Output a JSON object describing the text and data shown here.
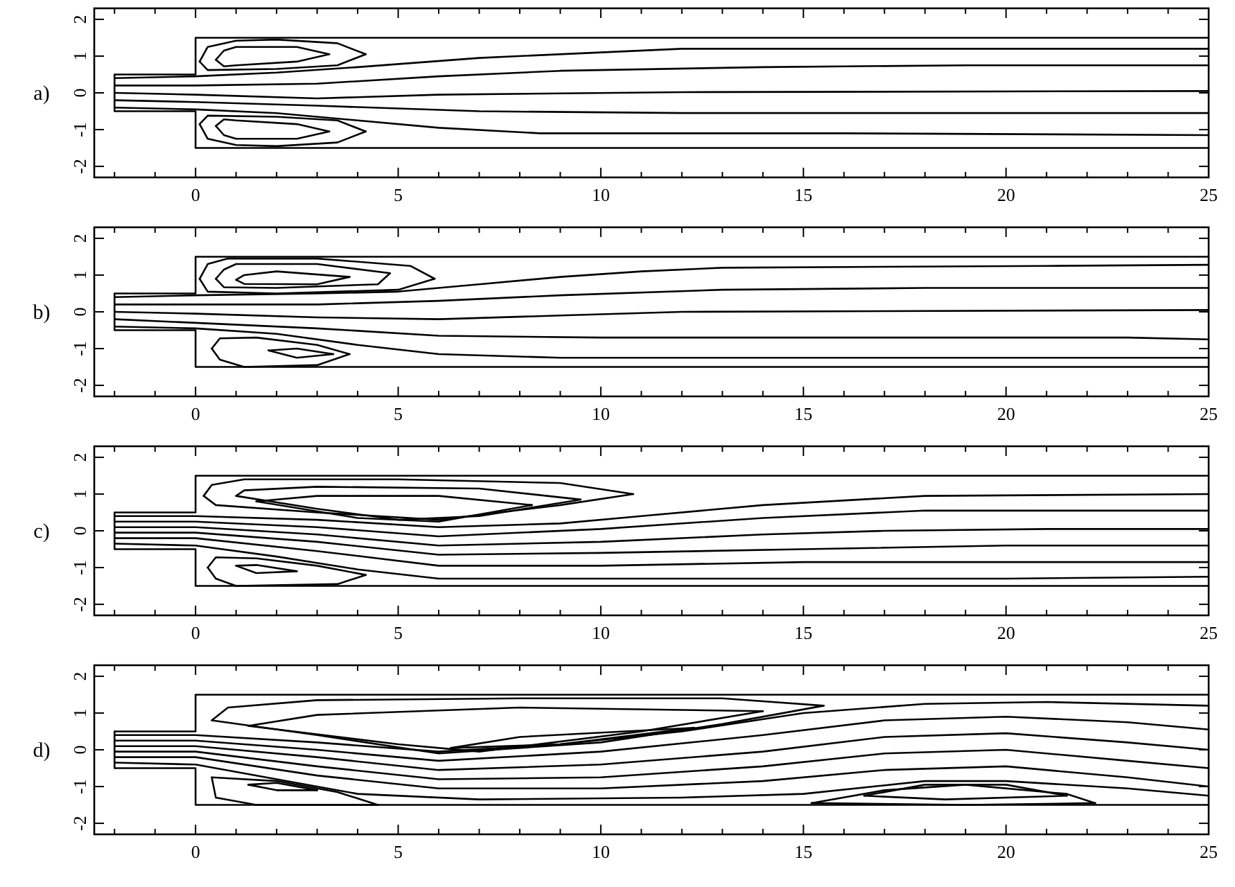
{
  "chart_data": [
    {
      "type": "line",
      "title": "a)",
      "xlim": [
        -2.5,
        25
      ],
      "ylim": [
        -2.3,
        2.3
      ],
      "yticks": [
        -2,
        -1,
        0,
        1,
        2
      ],
      "grid": false,
      "xticks": [
        {
          "value": -2,
          "label": null
        },
        {
          "value": -1,
          "label": null
        },
        0,
        {
          "value": 1,
          "label": null
        },
        {
          "value": 2,
          "label": null
        },
        {
          "value": 3,
          "label": null
        },
        {
          "value": 4,
          "label": null
        },
        5,
        {
          "value": 6,
          "label": null
        },
        {
          "value": 7,
          "label": null
        },
        {
          "value": 8,
          "label": null
        },
        {
          "value": 9,
          "label": null
        },
        10,
        {
          "value": 11,
          "label": null
        },
        {
          "value": 12,
          "label": null
        },
        {
          "value": 13,
          "label": null
        },
        {
          "value": 14,
          "label": null
        },
        15,
        {
          "value": 16,
          "label": null
        },
        {
          "value": 17,
          "label": null
        },
        {
          "value": 18,
          "label": null
        },
        {
          "value": 19,
          "label": null
        },
        20,
        {
          "value": 21,
          "label": null
        },
        {
          "value": 22,
          "label": null
        },
        {
          "value": 23,
          "label": null
        },
        {
          "value": 24,
          "label": null
        },
        25
      ],
      "series": [
        {
          "color": "#000000",
          "x": [
            25,
            0,
            0,
            -2,
            -2,
            0,
            0,
            25
          ],
          "values": [
            1.5,
            1.5,
            0.5,
            0.5,
            -0.5,
            -0.5,
            -1.5,
            -1.5
          ]
        },
        {
          "color": "#000000",
          "x": [
            -2,
            0,
            2,
            4,
            7,
            10,
            12,
            25
          ],
          "values": [
            0.4,
            0.45,
            0.55,
            0.7,
            0.95,
            1.1,
            1.2,
            1.2
          ]
        },
        {
          "color": "#000000",
          "x": [
            -2,
            0,
            3,
            6,
            9,
            14,
            19,
            25
          ],
          "values": [
            0.2,
            0.2,
            0.25,
            0.45,
            0.6,
            0.7,
            0.75,
            0.75
          ]
        },
        {
          "color": "#000000",
          "x": [
            -2,
            0,
            3,
            6,
            12,
            25
          ],
          "values": [
            0,
            -0.05,
            -0.15,
            -0.05,
            0.02,
            0.05
          ]
        },
        {
          "color": "#000000",
          "x": [
            -2,
            0,
            3,
            7,
            12,
            25
          ],
          "values": [
            -0.2,
            -0.25,
            -0.35,
            -0.5,
            -0.55,
            -0.55
          ]
        },
        {
          "color": "#000000",
          "x": [
            -2,
            0,
            2,
            4,
            6,
            8.5,
            16,
            25
          ],
          "values": [
            -0.4,
            -0.45,
            -0.55,
            -0.75,
            -0.95,
            -1.1,
            -1.1,
            -1.15
          ]
        },
        {
          "color": "#000000",
          "x": [
            0.1,
            0.3,
            1,
            2,
            3.5,
            4.2
          ],
          "values": [
            0.85,
            1.25,
            1.42,
            1.45,
            1.35,
            1.05
          ]
        },
        {
          "color": "#000000",
          "x": [
            0.1,
            0.3,
            2,
            3.5,
            4.2
          ],
          "values": [
            0.85,
            0.62,
            0.65,
            0.75,
            1.05
          ]
        },
        {
          "color": "#000000",
          "x": [
            0.5,
            0.7,
            1,
            2.5,
            3.3
          ],
          "values": [
            0.9,
            1.15,
            1.25,
            1.25,
            1.05
          ]
        },
        {
          "color": "#000000",
          "x": [
            0.5,
            0.7,
            1,
            2.5,
            3.3
          ],
          "values": [
            0.9,
            0.72,
            0.75,
            0.85,
            1.05
          ]
        },
        {
          "color": "#000000",
          "x": [
            0.1,
            0.3,
            1,
            2,
            3.5,
            4.2
          ],
          "values": [
            -0.85,
            -1.25,
            -1.42,
            -1.45,
            -1.35,
            -1.05
          ]
        },
        {
          "color": "#000000",
          "x": [
            0.1,
            0.3,
            2,
            3.5,
            4.2
          ],
          "values": [
            -0.85,
            -0.62,
            -0.65,
            -0.75,
            -1.05
          ]
        },
        {
          "color": "#000000",
          "x": [
            0.5,
            0.7,
            1,
            2.5,
            3.3
          ],
          "values": [
            -0.9,
            -1.15,
            -1.25,
            -1.25,
            -1.05
          ]
        },
        {
          "color": "#000000",
          "x": [
            0.5,
            0.7,
            1,
            2.5,
            3.3
          ],
          "values": [
            -0.9,
            -0.72,
            -0.75,
            -0.85,
            -1.05
          ]
        }
      ]
    },
    {
      "type": "line",
      "title": "b)",
      "xlim": [
        -2.5,
        25
      ],
      "ylim": [
        -2.3,
        2.3
      ],
      "yticks": [
        -2,
        -1,
        0,
        1,
        2
      ],
      "grid": false,
      "xticks": [
        {
          "value": -2,
          "label": null
        },
        {
          "value": -1,
          "label": null
        },
        0,
        {
          "value": 1,
          "label": null
        },
        {
          "value": 2,
          "label": null
        },
        {
          "value": 3,
          "label": null
        },
        {
          "value": 4,
          "label": null
        },
        5,
        {
          "value": 6,
          "label": null
        },
        {
          "value": 7,
          "label": null
        },
        {
          "value": 8,
          "label": null
        },
        {
          "value": 9,
          "label": null
        },
        10,
        {
          "value": 11,
          "label": null
        },
        {
          "value": 12,
          "label": null
        },
        {
          "value": 13,
          "label": null
        },
        {
          "value": 14,
          "label": null
        },
        15,
        {
          "value": 16,
          "label": null
        },
        {
          "value": 17,
          "label": null
        },
        {
          "value": 18,
          "label": null
        },
        {
          "value": 19,
          "label": null
        },
        20,
        {
          "value": 21,
          "label": null
        },
        {
          "value": 22,
          "label": null
        },
        {
          "value": 23,
          "label": null
        },
        {
          "value": 24,
          "label": null
        },
        25
      ],
      "series": [
        {
          "color": "#000000",
          "x": [
            25,
            0,
            0,
            -2,
            -2,
            0,
            0,
            25
          ],
          "values": [
            1.5,
            1.5,
            0.5,
            0.5,
            -0.5,
            -0.5,
            -1.5,
            -1.5
          ]
        },
        {
          "color": "#000000",
          "x": [
            -2,
            0,
            3,
            5,
            7,
            9,
            11,
            13,
            21,
            25
          ],
          "values": [
            0.4,
            0.45,
            0.5,
            0.55,
            0.75,
            0.95,
            1.1,
            1.2,
            1.25,
            1.28
          ]
        },
        {
          "color": "#000000",
          "x": [
            -2,
            0,
            3,
            6,
            9,
            13,
            18,
            25
          ],
          "values": [
            0.2,
            0.2,
            0.2,
            0.3,
            0.45,
            0.6,
            0.65,
            0.65
          ]
        },
        {
          "color": "#000000",
          "x": [
            -2,
            0,
            3,
            6,
            9,
            12,
            25
          ],
          "values": [
            0,
            -0.05,
            -0.15,
            -0.2,
            -0.1,
            0,
            0.05
          ]
        },
        {
          "color": "#000000",
          "x": [
            -2,
            0,
            3,
            6,
            10,
            23,
            25
          ],
          "values": [
            -0.2,
            -0.3,
            -0.45,
            -0.65,
            -0.7,
            -0.7,
            -0.75
          ]
        },
        {
          "color": "#000000",
          "x": [
            -2,
            0,
            2,
            4,
            6,
            9,
            25
          ],
          "values": [
            -0.4,
            -0.45,
            -0.6,
            -0.9,
            -1.15,
            -1.25,
            -1.25
          ]
        },
        {
          "color": "#000000",
          "x": [
            0.1,
            0.3,
            0.8,
            3,
            5.3,
            5.9
          ],
          "values": [
            0.9,
            1.3,
            1.45,
            1.45,
            1.25,
            0.9
          ]
        },
        {
          "color": "#000000",
          "x": [
            0.1,
            0.3,
            2,
            5,
            5.9
          ],
          "values": [
            0.9,
            0.55,
            0.5,
            0.6,
            0.9
          ]
        },
        {
          "color": "#000000",
          "x": [
            0.5,
            0.7,
            1,
            3,
            4.8
          ],
          "values": [
            0.9,
            1.15,
            1.3,
            1.3,
            1.05
          ]
        },
        {
          "color": "#000000",
          "x": [
            0.5,
            0.7,
            2,
            4.5,
            4.8
          ],
          "values": [
            0.9,
            0.67,
            0.65,
            0.75,
            1.05
          ]
        },
        {
          "color": "#000000",
          "x": [
            1,
            1.2,
            2,
            3.8
          ],
          "values": [
            0.87,
            1,
            1.1,
            0.95
          ]
        },
        {
          "color": "#000000",
          "x": [
            1,
            1.2,
            3,
            3.8
          ],
          "values": [
            0.87,
            0.76,
            0.75,
            0.95
          ]
        },
        {
          "color": "#000000",
          "x": [
            0.4,
            0.6,
            1.5,
            3,
            3.8
          ],
          "values": [
            -1,
            -0.72,
            -0.7,
            -0.9,
            -1.15
          ]
        },
        {
          "color": "#000000",
          "x": [
            0.4,
            0.6,
            1.2,
            3,
            3.8
          ],
          "values": [
            -1,
            -1.3,
            -1.5,
            -1.45,
            -1.15
          ]
        },
        {
          "color": "#000000",
          "x": [
            1.8,
            2.5,
            3.4
          ],
          "values": [
            -1.05,
            -1,
            -1.15
          ]
        },
        {
          "color": "#000000",
          "x": [
            1.8,
            2.5,
            3.4
          ],
          "values": [
            -1.05,
            -1.25,
            -1.15
          ]
        }
      ]
    },
    {
      "type": "line",
      "title": "c)",
      "xlim": [
        -2.5,
        25
      ],
      "ylim": [
        -2.3,
        2.3
      ],
      "yticks": [
        -2,
        -1,
        0,
        1,
        2
      ],
      "grid": false,
      "xticks": [
        {
          "value": -2,
          "label": null
        },
        {
          "value": -1,
          "label": null
        },
        0,
        {
          "value": 1,
          "label": null
        },
        {
          "value": 2,
          "label": null
        },
        {
          "value": 3,
          "label": null
        },
        {
          "value": 4,
          "label": null
        },
        5,
        {
          "value": 6,
          "label": null
        },
        {
          "value": 7,
          "label": null
        },
        {
          "value": 8,
          "label": null
        },
        {
          "value": 9,
          "label": null
        },
        10,
        {
          "value": 11,
          "label": null
        },
        {
          "value": 12,
          "label": null
        },
        {
          "value": 13,
          "label": null
        },
        {
          "value": 14,
          "label": null
        },
        15,
        {
          "value": 16,
          "label": null
        },
        {
          "value": 17,
          "label": null
        },
        {
          "value": 18,
          "label": null
        },
        {
          "value": 19,
          "label": null
        },
        20,
        {
          "value": 21,
          "label": null
        },
        {
          "value": 22,
          "label": null
        },
        {
          "value": 23,
          "label": null
        },
        {
          "value": 24,
          "label": null
        },
        25
      ],
      "series": [
        {
          "color": "#000000",
          "x": [
            25,
            0,
            0,
            -2,
            -2,
            0,
            0,
            25
          ],
          "values": [
            1.5,
            1.5,
            0.5,
            0.5,
            -0.5,
            -0.5,
            -1.5,
            -1.5
          ]
        },
        {
          "color": "#000000",
          "x": [
            -2,
            0,
            3,
            6,
            9,
            11,
            14,
            18,
            25
          ],
          "values": [
            0.4,
            0.4,
            0.3,
            0.1,
            0.2,
            0.4,
            0.7,
            0.95,
            1
          ]
        },
        {
          "color": "#000000",
          "x": [
            -2,
            0,
            3,
            6,
            10,
            14,
            18,
            25
          ],
          "values": [
            0.25,
            0.25,
            0.1,
            -0.15,
            0.05,
            0.35,
            0.55,
            0.55
          ]
        },
        {
          "color": "#000000",
          "x": [
            -2,
            0,
            3,
            6,
            10,
            14,
            17,
            21,
            25
          ],
          "values": [
            0.1,
            0.1,
            -0.1,
            -0.4,
            -0.3,
            -0.1,
            0,
            0.05,
            0.05
          ]
        },
        {
          "color": "#000000",
          "x": [
            -2,
            0,
            3,
            6,
            10,
            15,
            20,
            25
          ],
          "values": [
            -0.05,
            -0.05,
            -0.3,
            -0.65,
            -0.6,
            -0.5,
            -0.4,
            -0.4
          ]
        },
        {
          "color": "#000000",
          "x": [
            -2,
            0,
            3,
            6,
            10,
            15,
            20,
            25
          ],
          "values": [
            -0.2,
            -0.2,
            -0.55,
            -0.95,
            -0.95,
            -0.85,
            -0.85,
            -0.85
          ]
        },
        {
          "color": "#000000",
          "x": [
            -2,
            0,
            2,
            4,
            6,
            20,
            25
          ],
          "values": [
            -0.35,
            -0.4,
            -0.7,
            -1.05,
            -1.3,
            -1.3,
            -1.25
          ]
        },
        {
          "color": "#000000",
          "x": [
            0.2,
            0.4,
            1.2,
            5,
            9,
            10.8
          ],
          "values": [
            0.95,
            1.25,
            1.4,
            1.4,
            1.3,
            1
          ]
        },
        {
          "color": "#000000",
          "x": [
            0.2,
            0.5,
            3,
            6,
            9,
            10.8
          ],
          "values": [
            0.95,
            0.7,
            0.5,
            0.3,
            0.7,
            1
          ]
        },
        {
          "color": "#000000",
          "x": [
            1,
            1.2,
            3,
            7,
            9.5
          ],
          "values": [
            0.95,
            1.1,
            1.2,
            1.15,
            0.85
          ]
        },
        {
          "color": "#000000",
          "x": [
            1,
            3,
            5,
            7,
            9.5
          ],
          "values": [
            0.95,
            0.6,
            0.3,
            0.4,
            0.85
          ]
        },
        {
          "color": "#000000",
          "x": [
            1.5,
            3,
            6,
            8.3
          ],
          "values": [
            0.8,
            0.95,
            0.95,
            0.7
          ]
        },
        {
          "color": "#000000",
          "x": [
            1.5,
            4,
            6,
            8.3
          ],
          "values": [
            0.8,
            0.35,
            0.25,
            0.7
          ]
        },
        {
          "color": "#000000",
          "x": [
            0.3,
            0.5,
            1.5,
            3,
            4.2
          ],
          "values": [
            -1,
            -0.72,
            -0.75,
            -0.95,
            -1.2
          ]
        },
        {
          "color": "#000000",
          "x": [
            0.3,
            0.5,
            1,
            3.5,
            4.2
          ],
          "values": [
            -1,
            -1.3,
            -1.5,
            -1.45,
            -1.2
          ]
        },
        {
          "color": "#000000",
          "x": [
            1,
            1.5,
            2.5
          ],
          "values": [
            -0.95,
            -0.93,
            -1.1
          ]
        },
        {
          "color": "#000000",
          "x": [
            1,
            1.5,
            2.5
          ],
          "values": [
            -0.95,
            -1.15,
            -1.1
          ]
        }
      ]
    },
    {
      "type": "line",
      "title": "d)",
      "xlim": [
        -2.5,
        25
      ],
      "ylim": [
        -2.3,
        2.3
      ],
      "yticks": [
        -2,
        -1,
        0,
        1,
        2
      ],
      "grid": false,
      "xticks": [
        {
          "value": -2,
          "label": null
        },
        {
          "value": -1,
          "label": null
        },
        0,
        {
          "value": 1,
          "label": null
        },
        {
          "value": 2,
          "label": null
        },
        {
          "value": 3,
          "label": null
        },
        {
          "value": 4,
          "label": null
        },
        5,
        {
          "value": 6,
          "label": null
        },
        {
          "value": 7,
          "label": null
        },
        {
          "value": 8,
          "label": null
        },
        {
          "value": 9,
          "label": null
        },
        10,
        {
          "value": 11,
          "label": null
        },
        {
          "value": 12,
          "label": null
        },
        {
          "value": 13,
          "label": null
        },
        {
          "value": 14,
          "label": null
        },
        15,
        {
          "value": 16,
          "label": null
        },
        {
          "value": 17,
          "label": null
        },
        {
          "value": 18,
          "label": null
        },
        {
          "value": 19,
          "label": null
        },
        20,
        {
          "value": 21,
          "label": null
        },
        {
          "value": 22,
          "label": null
        },
        {
          "value": 23,
          "label": null
        },
        {
          "value": 24,
          "label": null
        },
        25
      ],
      "series": [
        {
          "color": "#000000",
          "x": [
            25,
            0,
            0,
            -2,
            -2,
            0,
            0,
            25
          ],
          "values": [
            1.5,
            1.5,
            0.5,
            0.5,
            -0.5,
            -0.5,
            -1.5,
            -1.5
          ]
        },
        {
          "color": "#000000",
          "x": [
            -2,
            0,
            3,
            6,
            9,
            12,
            15,
            18,
            21,
            25
          ],
          "values": [
            0.4,
            0.4,
            0.2,
            -0.05,
            0.15,
            0.5,
            1,
            1.25,
            1.3,
            1.2
          ]
        },
        {
          "color": "#000000",
          "x": [
            -2,
            0,
            3,
            6,
            10,
            14,
            17,
            20,
            23,
            25
          ],
          "values": [
            0.25,
            0.25,
            0,
            -0.3,
            -0.05,
            0.4,
            0.8,
            0.9,
            0.75,
            0.55
          ]
        },
        {
          "color": "#000000",
          "x": [
            -2,
            0,
            3,
            6,
            10,
            14,
            17,
            20,
            23,
            25
          ],
          "values": [
            0.1,
            0.1,
            -0.2,
            -0.55,
            -0.4,
            -0.05,
            0.35,
            0.45,
            0.2,
            0
          ]
        },
        {
          "color": "#000000",
          "x": [
            -2,
            0,
            3,
            6,
            10,
            14,
            17,
            20,
            23,
            25
          ],
          "values": [
            -0.05,
            -0.05,
            -0.45,
            -0.8,
            -0.75,
            -0.45,
            -0.1,
            0,
            -0.3,
            -0.5
          ]
        },
        {
          "color": "#000000",
          "x": [
            -2,
            0,
            3,
            6,
            10,
            14,
            17,
            20,
            23,
            25
          ],
          "values": [
            -0.2,
            -0.2,
            -0.7,
            -1.05,
            -1.05,
            -0.85,
            -0.55,
            -0.45,
            -0.75,
            -1
          ]
        },
        {
          "color": "#000000",
          "x": [
            -2,
            0,
            2,
            4,
            7,
            12,
            15,
            18,
            20,
            23,
            25
          ],
          "values": [
            -0.35,
            -0.4,
            -0.8,
            -1.2,
            -1.35,
            -1.3,
            -1.2,
            -0.85,
            -0.85,
            -1.05,
            -1.25
          ]
        },
        {
          "color": "#000000",
          "x": [
            0.4,
            0.8,
            3,
            8,
            13,
            15.5
          ],
          "values": [
            0.8,
            1.15,
            1.35,
            1.4,
            1.4,
            1.2
          ]
        },
        {
          "color": "#000000",
          "x": [
            0.4,
            3,
            6,
            10,
            13,
            15.5
          ],
          "values": [
            0.8,
            0.4,
            -0.1,
            0.2,
            0.7,
            1.2
          ]
        },
        {
          "color": "#000000",
          "x": [
            1.3,
            3,
            8,
            14
          ],
          "values": [
            0.65,
            0.95,
            1.15,
            1.05
          ]
        },
        {
          "color": "#000000",
          "x": [
            1.3,
            5,
            7,
            11,
            14
          ],
          "values": [
            0.65,
            0.15,
            -0.05,
            0.5,
            1.05
          ]
        },
        {
          "color": "#000000",
          "x": [
            6.3,
            8,
            12.3
          ],
          "values": [
            0.05,
            0.35,
            0.6
          ]
        },
        {
          "color": "#000000",
          "x": [
            6.3,
            9,
            12.3
          ],
          "values": [
            0.05,
            0.15,
            0.6
          ]
        },
        {
          "color": "#000000",
          "x": [
            0.4,
            2,
            3.5,
            4.5
          ],
          "values": [
            -0.75,
            -0.85,
            -1.15,
            -1.5
          ]
        },
        {
          "color": "#000000",
          "x": [
            0.4,
            0.5,
            1.5,
            4.5
          ],
          "values": [
            -0.75,
            -1.3,
            -1.5,
            -1.5
          ]
        },
        {
          "color": "#000000",
          "x": [
            1.3,
            2,
            3
          ],
          "values": [
            -0.95,
            -0.9,
            -1.1
          ]
        },
        {
          "color": "#000000",
          "x": [
            1.3,
            2,
            3
          ],
          "values": [
            -0.95,
            -1.1,
            -1.1
          ]
        },
        {
          "color": "#000000",
          "x": [
            15.2,
            17,
            19,
            21.5,
            22.2
          ],
          "values": [
            -1.45,
            -1.1,
            -0.95,
            -1.2,
            -1.45
          ]
        },
        {
          "color": "#000000",
          "x": [
            15.2,
            19,
            22.2
          ],
          "values": [
            -1.45,
            -1.5,
            -1.45
          ]
        },
        {
          "color": "#000000",
          "x": [
            16.5,
            18,
            20,
            21.5
          ],
          "values": [
            -1.25,
            -0.95,
            -0.95,
            -1.25
          ]
        },
        {
          "color": "#000000",
          "x": [
            16.5,
            18.5,
            21.5
          ],
          "values": [
            -1.25,
            -1.35,
            -1.25
          ]
        }
      ]
    }
  ]
}
